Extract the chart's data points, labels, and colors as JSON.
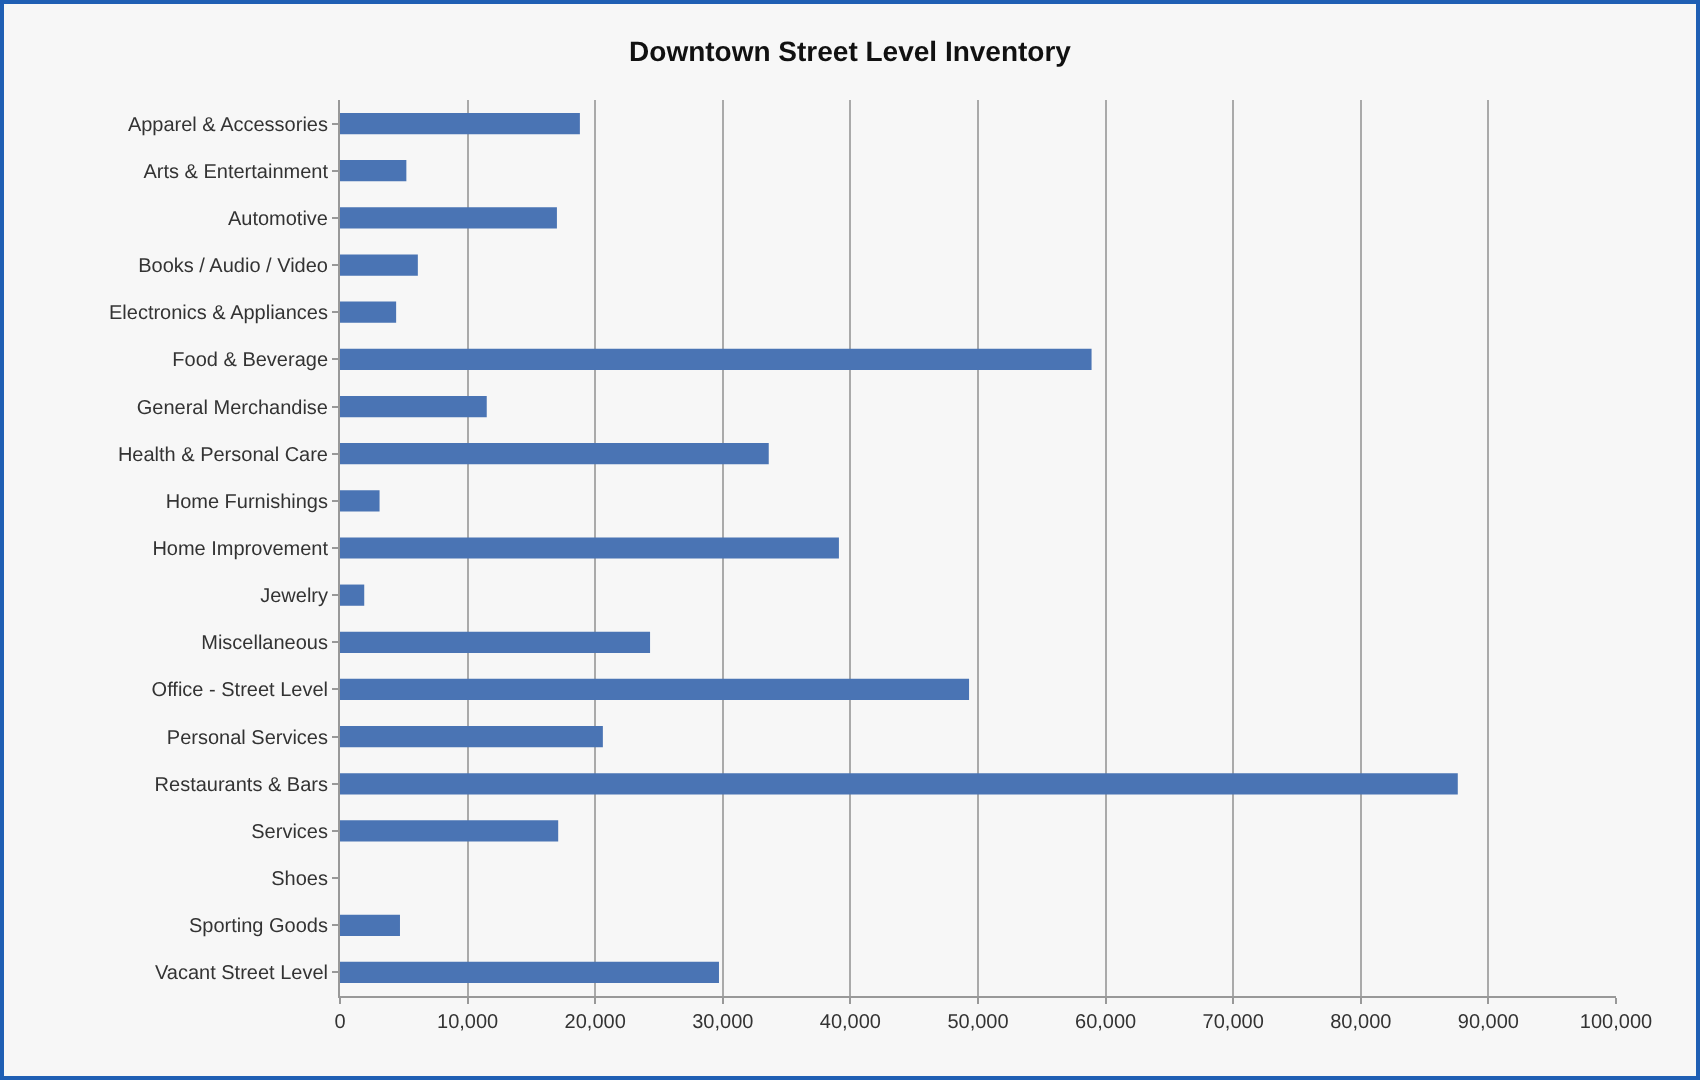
{
  "chart_data": {
    "type": "bar",
    "orientation": "horizontal",
    "title": "Downtown Street Level Inventory",
    "categories": [
      "Apparel & Accessories",
      "Arts & Entertainment",
      "Automotive",
      "Books / Audio / Video",
      "Electronics & Appliances",
      "Food & Beverage",
      "General Merchandise",
      "Health & Personal Care",
      "Home Furnishings",
      "Home Improvement",
      "Jewelry",
      "Miscellaneous",
      "Office - Street Level",
      "Personal Services",
      "Restaurants & Bars",
      "Services",
      "Shoes",
      "Sporting Goods",
      "Vacant Street Level"
    ],
    "values": [
      18800,
      5200,
      17000,
      6100,
      4400,
      58900,
      11500,
      33600,
      3100,
      39100,
      1900,
      24300,
      49300,
      20600,
      87600,
      17100,
      0,
      4700,
      29700
    ],
    "color": "#4a74b4",
    "xlim": [
      0,
      100000
    ],
    "xticks": [
      {
        "value": 0,
        "label": "0"
      },
      {
        "value": 10000,
        "label": "10,000"
      },
      {
        "value": 20000,
        "label": "20,000"
      },
      {
        "value": 30000,
        "label": "30,000"
      },
      {
        "value": 40000,
        "label": "40,000"
      },
      {
        "value": 50000,
        "label": "50,000"
      },
      {
        "value": 60000,
        "label": "60,000"
      },
      {
        "value": 70000,
        "label": "70,000"
      },
      {
        "value": 80000,
        "label": "80,000"
      },
      {
        "value": 90000,
        "label": "90,000"
      },
      {
        "value": 100000,
        "label": "100,000"
      }
    ],
    "grid": "x"
  }
}
